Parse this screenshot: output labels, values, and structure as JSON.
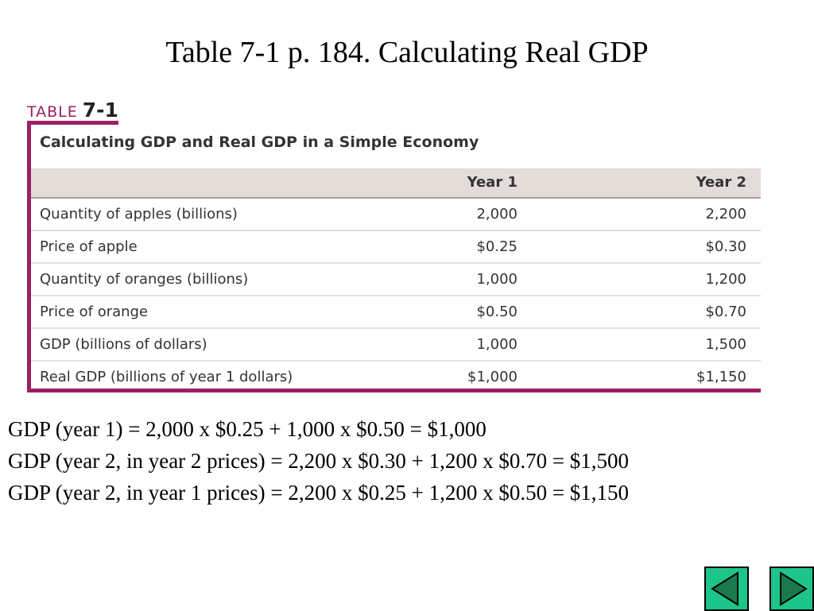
{
  "slide": {
    "title": "Table 7-1 p. 184. Calculating Real GDP"
  },
  "table": {
    "label_word": "TABLE",
    "label_number": "7-1",
    "caption": "Calculating GDP and Real GDP in a Simple Economy",
    "columns": [
      "",
      "Year 1",
      "Year 2"
    ],
    "rows": [
      [
        "Quantity of apples (billions)",
        "2,000",
        "2,200"
      ],
      [
        "Price of apple",
        "$0.25",
        "$0.30"
      ],
      [
        "Quantity of oranges (billions)",
        "1,000",
        "1,200"
      ],
      [
        "Price of orange",
        "$0.50",
        "$0.70"
      ],
      [
        "GDP (billions of dollars)",
        "1,000",
        "1,500"
      ],
      [
        "Real GDP (billions of year 1 dollars)",
        "$1,000",
        "$1,150"
      ]
    ]
  },
  "equations": [
    "GDP (year 1) = 2,000 x $0.25 + 1,000 x $0.50 = $1,000",
    "GDP (year 2, in year 2 prices) = 2,200 x $0.30 + 1,200 x $0.70 = $1,500",
    "GDP (year 2, in year 1 prices) = 2,200 x $0.25 + 1,200 x $0.50 = $1,150"
  ],
  "nav": {
    "prev_icon": "triangle-left-icon",
    "next_icon": "triangle-right-icon"
  },
  "colors": {
    "accent": "#9b2062",
    "header_bg": "#e4dcd9",
    "nav_button": "#1ec58a",
    "nav_arrow": "#1a7a4e"
  }
}
